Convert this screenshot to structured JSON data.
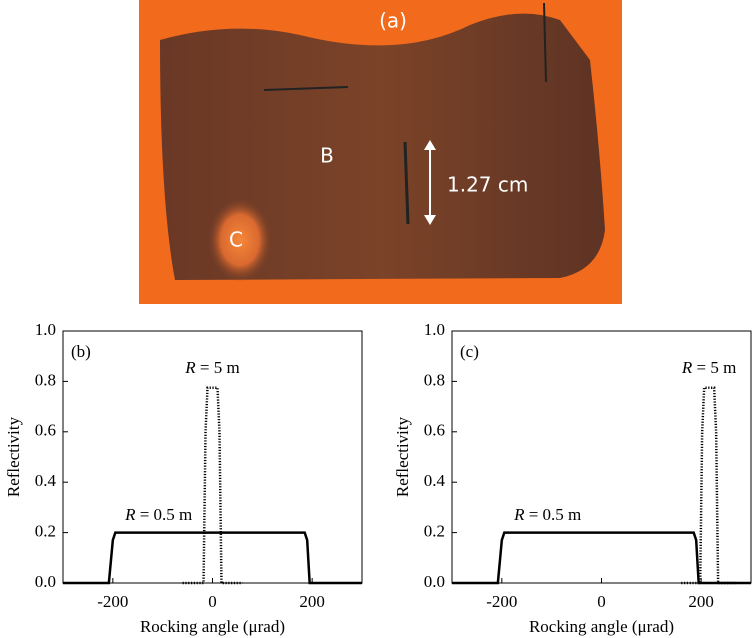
{
  "photo": {
    "label": "(a)",
    "regions": [
      "B",
      "C"
    ],
    "scale": "1.27 cm"
  },
  "chart_data": [
    {
      "type": "line",
      "panel": "(b)",
      "xlabel": "Rocking angle (μrad)",
      "ylabel": "Reflectivity",
      "xlim": [
        -300,
        300
      ],
      "xticks": [
        -200,
        0,
        200
      ],
      "ylim": [
        0,
        1
      ],
      "yticks": [
        {
          "value": 0,
          "label": "0.0"
        },
        0.2,
        0.4,
        0.6,
        0.8,
        {
          "value": 1,
          "label": "1.0"
        }
      ],
      "series": [
        {
          "name": "R = 0.5 m",
          "color": "#000000",
          "dash": "solid",
          "x": [
            -300,
            -208,
            -200,
            -195,
            185,
            190,
            195,
            300
          ],
          "values": [
            0,
            0,
            0.17,
            0.2,
            0.2,
            0.17,
            0,
            0
          ]
        },
        {
          "name": "R = 5 m",
          "color": "#000000",
          "dash": "dotted",
          "x": [
            -60,
            -18,
            -14,
            -10,
            10,
            14,
            18,
            60
          ],
          "values": [
            0,
            0,
            0.6,
            0.775,
            0.775,
            0.6,
            0,
            0
          ]
        }
      ]
    },
    {
      "type": "line",
      "panel": "(c)",
      "xlabel": "Rocking angle (μrad)",
      "ylabel": "Reflectivity",
      "xlim": [
        -300,
        300
      ],
      "xticks": [
        -200,
        0,
        200
      ],
      "ylim": [
        0,
        1
      ],
      "yticks": [
        {
          "value": 0,
          "label": "0.0"
        },
        0.2,
        0.4,
        0.6,
        0.8,
        {
          "value": 1,
          "label": "1.0"
        }
      ],
      "series": [
        {
          "name": "R = 0.5 m",
          "color": "#000000",
          "dash": "solid",
          "x": [
            -300,
            -208,
            -200,
            -195,
            185,
            190,
            195,
            300
          ],
          "values": [
            0,
            0,
            0.17,
            0.2,
            0.2,
            0.17,
            0,
            0
          ]
        },
        {
          "name": "R = 5 m",
          "color": "#000000",
          "dash": "dotted",
          "x": [
            160,
            198,
            202,
            206,
            226,
            230,
            234,
            270
          ],
          "values": [
            0,
            0,
            0.6,
            0.775,
            0.775,
            0.6,
            0,
            0
          ]
        }
      ]
    }
  ]
}
